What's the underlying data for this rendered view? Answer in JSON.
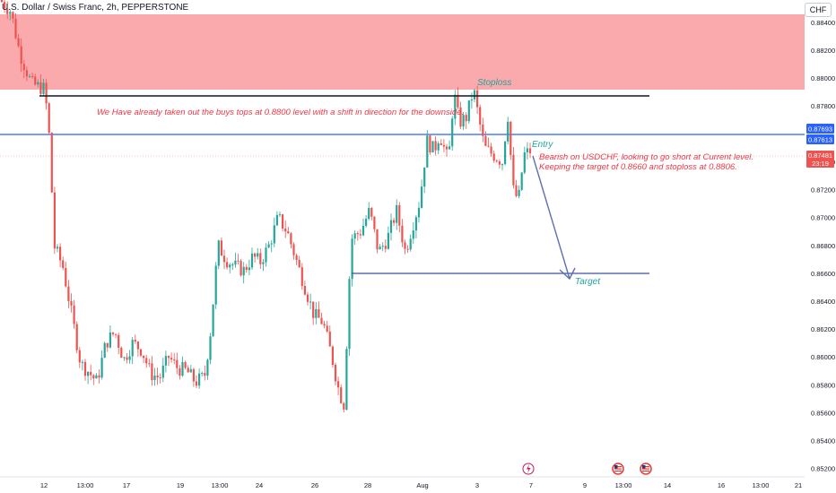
{
  "header": {
    "symbol_title": "U.S. Dollar / Swiss Franc, 2h, PEPPERSTONE",
    "currency_button": "CHF"
  },
  "price_axis": {
    "ticks": [
      "0.88400",
      "0.88200",
      "0.88000",
      "0.87800",
      "0.87400",
      "0.87200",
      "0.87000",
      "0.86800",
      "0.86600",
      "0.86400",
      "0.86200",
      "0.86000",
      "0.85800",
      "0.85600",
      "0.85400",
      "0.85200"
    ],
    "tick_values": [
      0.884,
      0.882,
      0.88,
      0.878,
      0.874,
      0.872,
      0.87,
      0.868,
      0.866,
      0.864,
      0.862,
      0.86,
      0.858,
      0.856,
      0.854,
      0.852
    ],
    "current_price": "0.87481",
    "countdown": "23:19",
    "level_label_1": "0.87693",
    "level_label_2": "0.87613"
  },
  "time_axis": {
    "labels": [
      "12",
      "13:00",
      "17",
      "19",
      "13:00",
      "24",
      "26",
      "28",
      "Aug",
      "3",
      "7",
      "9",
      "13:00",
      "14",
      "16",
      "13:00",
      "21"
    ],
    "label_x": [
      49,
      95,
      141,
      201,
      245,
      289,
      351,
      410,
      471,
      532,
      592,
      652,
      695,
      744,
      804,
      848,
      890
    ]
  },
  "colors": {
    "bull": "#26a69a",
    "bear": "#ef5350",
    "zone": "#f77c80",
    "blue_line": "#2962ff",
    "arrow": "#5b70b0",
    "annotation_red": "#f23645",
    "annotation_teal": "#22a39c",
    "axis_text": "#131722"
  },
  "annotations": {
    "main_note": "We Have already taken out the buys tops at 0.8800 level with a shift in direction for the downside.",
    "stoploss_label": "Stoploss",
    "entry_label": "Entry",
    "target_label": "Target",
    "idea_line_1": "Bearish on USDCHF, looking to go short at Current level.",
    "idea_line_2": "Keeping the target of 0.8660 and stoploss at 0.8806."
  },
  "chart_data": {
    "type": "candlestick",
    "title": "U.S. Dollar / Swiss Franc, 2h, PEPPERSTONE",
    "currency": "CHF",
    "ylim": [
      0.8514,
      0.8856
    ],
    "path_points": [
      [
        0,
        0.8856
      ],
      [
        12,
        0.8848
      ],
      [
        22,
        0.8818
      ],
      [
        35,
        0.8796
      ],
      [
        50,
        0.8792
      ],
      [
        56,
        0.875
      ],
      [
        60,
        0.868
      ],
      [
        70,
        0.8665
      ],
      [
        80,
        0.863
      ],
      [
        90,
        0.8595
      ],
      [
        98,
        0.859
      ],
      [
        108,
        0.8582
      ],
      [
        118,
        0.861
      ],
      [
        128,
        0.8618
      ],
      [
        138,
        0.8598
      ],
      [
        148,
        0.861
      ],
      [
        158,
        0.8605
      ],
      [
        168,
        0.8588
      ],
      [
        178,
        0.8585
      ],
      [
        188,
        0.86
      ],
      [
        198,
        0.8592
      ],
      [
        208,
        0.859
      ],
      [
        218,
        0.8582
      ],
      [
        228,
        0.8586
      ],
      [
        235,
        0.862
      ],
      [
        243,
        0.868
      ],
      [
        252,
        0.867
      ],
      [
        262,
        0.8665
      ],
      [
        272,
        0.8662
      ],
      [
        282,
        0.8672
      ],
      [
        290,
        0.8668
      ],
      [
        300,
        0.868
      ],
      [
        310,
        0.87
      ],
      [
        320,
        0.869
      ],
      [
        330,
        0.867
      ],
      [
        340,
        0.865
      ],
      [
        350,
        0.863
      ],
      [
        360,
        0.8625
      ],
      [
        370,
        0.86
      ],
      [
        378,
        0.8575
      ],
      [
        384,
        0.8565
      ],
      [
        388,
        0.864
      ],
      [
        392,
        0.8685
      ],
      [
        402,
        0.869
      ],
      [
        412,
        0.8705
      ],
      [
        422,
        0.8675
      ],
      [
        432,
        0.8685
      ],
      [
        442,
        0.8705
      ],
      [
        452,
        0.8675
      ],
      [
        458,
        0.869
      ],
      [
        468,
        0.8712
      ],
      [
        476,
        0.8755
      ],
      [
        484,
        0.8748
      ],
      [
        490,
        0.876
      ],
      [
        500,
        0.874
      ],
      [
        506,
        0.879
      ],
      [
        512,
        0.8768
      ],
      [
        520,
        0.8772
      ],
      [
        528,
        0.8792
      ],
      [
        534,
        0.877
      ],
      [
        540,
        0.875
      ],
      [
        550,
        0.8745
      ],
      [
        560,
        0.874
      ],
      [
        566,
        0.8775
      ],
      [
        572,
        0.872
      ],
      [
        578,
        0.8712
      ],
      [
        584,
        0.8745
      ],
      [
        592,
        0.8748
      ]
    ],
    "levels": [
      {
        "label": "0.87693",
        "value": 0.87693
      },
      {
        "label": "0.87613",
        "value": 0.87613
      },
      {
        "label": "0.87481",
        "value": 0.87481
      }
    ],
    "resistance_zone": [
      0.8799,
      0.8856
    ],
    "horizontal_lines": [
      0.8793,
      0.8661
    ],
    "grid": false
  }
}
